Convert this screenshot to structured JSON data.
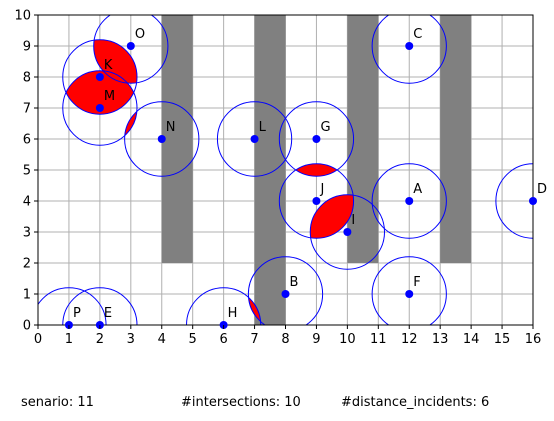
{
  "chart_data": {
    "type": "scatter",
    "xlim": [
      0,
      16
    ],
    "ylim": [
      0,
      10
    ],
    "x_ticks": [
      "0",
      "1",
      "2",
      "3",
      "4",
      "5",
      "6",
      "7",
      "8",
      "9",
      "10",
      "11",
      "12",
      "13",
      "14",
      "15",
      "16"
    ],
    "y_ticks": [
      "0",
      "1",
      "2",
      "3",
      "4",
      "5",
      "6",
      "7",
      "8",
      "9",
      "10"
    ],
    "grid": true,
    "obstacles": [
      {
        "x0": 4,
        "x1": 5,
        "y0": 2,
        "y1": 10
      },
      {
        "x0": 7,
        "x1": 8,
        "y0": 0,
        "y1": 10
      },
      {
        "x0": 10,
        "x1": 11,
        "y0": 2,
        "y1": 10
      },
      {
        "x0": 13,
        "x1": 14,
        "y0": 2,
        "y1": 10
      }
    ],
    "radius": 1.2,
    "points": [
      {
        "label": "A",
        "x": 12,
        "y": 4
      },
      {
        "label": "B",
        "x": 8,
        "y": 1
      },
      {
        "label": "C",
        "x": 12,
        "y": 9
      },
      {
        "label": "D",
        "x": 16,
        "y": 4
      },
      {
        "label": "E",
        "x": 2,
        "y": 0
      },
      {
        "label": "F",
        "x": 12,
        "y": 1
      },
      {
        "label": "G",
        "x": 9,
        "y": 6
      },
      {
        "label": "H",
        "x": 6,
        "y": 0
      },
      {
        "label": "I",
        "x": 10,
        "y": 3
      },
      {
        "label": "J",
        "x": 9,
        "y": 4
      },
      {
        "label": "K",
        "x": 2,
        "y": 8
      },
      {
        "label": "L",
        "x": 7,
        "y": 6
      },
      {
        "label": "M",
        "x": 2,
        "y": 7
      },
      {
        "label": "N",
        "x": 4,
        "y": 6
      },
      {
        "label": "O",
        "x": 3,
        "y": 9
      },
      {
        "label": "P",
        "x": 1,
        "y": 0
      }
    ],
    "intersecting_pairs": [
      [
        "K",
        "M"
      ],
      [
        "K",
        "O"
      ],
      [
        "M",
        "N"
      ],
      [
        "G",
        "J"
      ],
      [
        "I",
        "J"
      ],
      [
        "H",
        "B"
      ]
    ],
    "colors": {
      "circle": "#0000ff",
      "point": "#0000ff",
      "intersection": "#ff0000",
      "obstacle": "#808080",
      "grid": "#b0b0b0"
    }
  },
  "footer": {
    "scenario": "senario: 11",
    "intersections": "#intersections: 10",
    "distance_incidents": "#distance_incidents: 6"
  }
}
